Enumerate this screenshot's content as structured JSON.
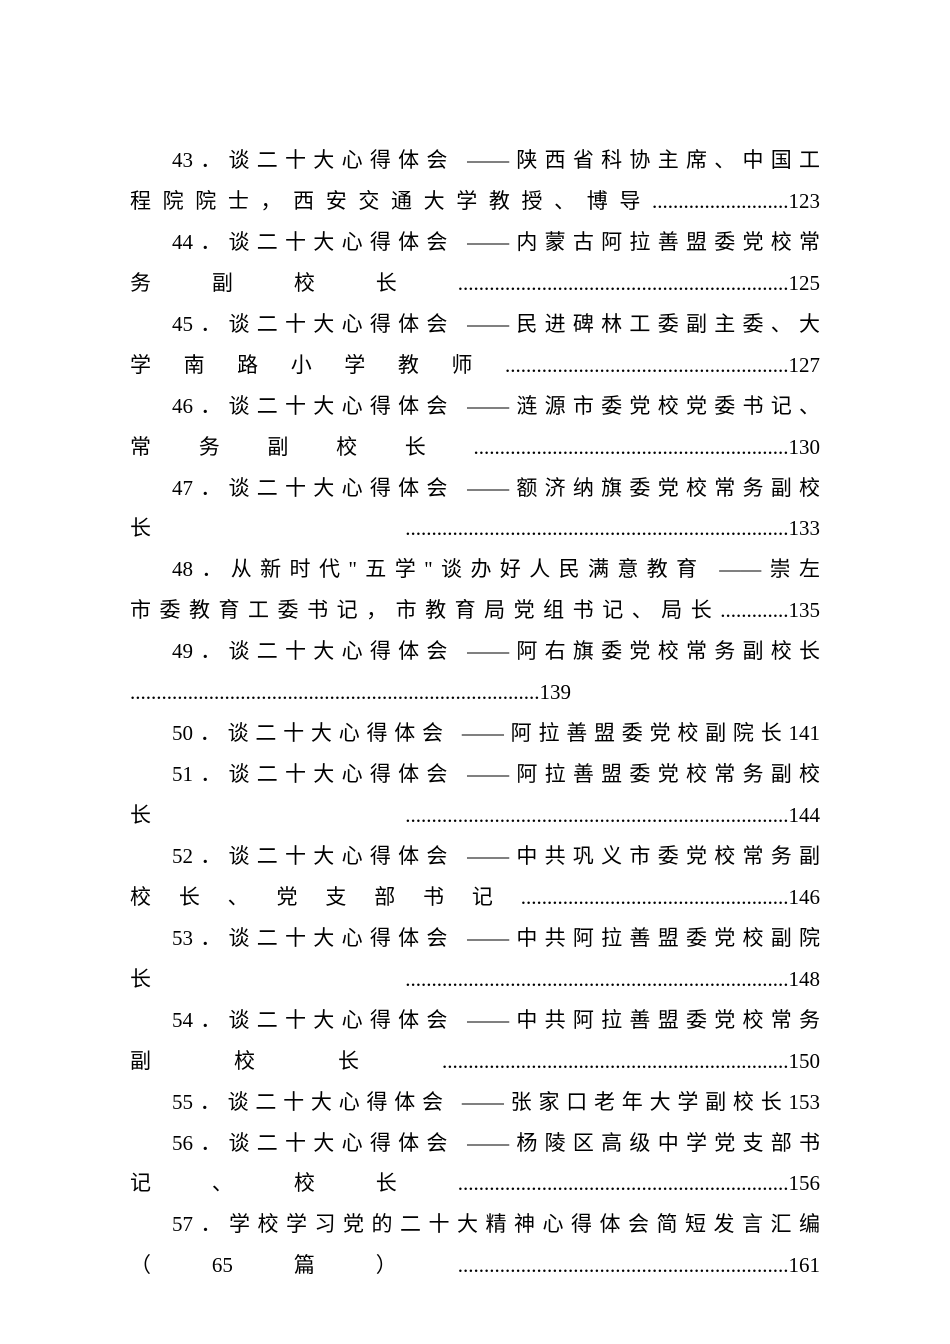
{
  "document": {
    "font_family": "SimSun",
    "font_size_pt": 16,
    "text_color": "#000000",
    "background_color": "#ffffff",
    "line_height": 1.95
  },
  "toc_entries": [
    {
      "number": "43",
      "title": "谈二十大心得体会 ——陕西省科协主席、中国工程院院士，西安交通大学教授、博导",
      "page": "123",
      "lines": [
        {
          "text": "43．谈二十大心得体会 ——陕西省科协主席、中国工",
          "indent": true
        },
        {
          "text": "程院院士，西安交通大学教授、博导..........................123",
          "indent": false
        }
      ]
    },
    {
      "number": "44",
      "title": "谈二十大心得体会 ——内蒙古阿拉善盟委党校常务副校长",
      "page": "125",
      "lines": [
        {
          "text": "44．谈二十大心得体会 ——内蒙古阿拉善盟委党校常",
          "indent": true
        },
        {
          "text": "务副校长...............................................................125",
          "indent": false
        }
      ]
    },
    {
      "number": "45",
      "title": "谈二十大心得体会 ——民进碑林工委副主委、大学南路小学教师",
      "page": "127",
      "lines": [
        {
          "text": "45．谈二十大心得体会 ——民进碑林工委副主委、大",
          "indent": true
        },
        {
          "text": "学南路小学教师......................................................127",
          "indent": false
        }
      ]
    },
    {
      "number": "46",
      "title": "谈二十大心得体会 ——涟源市委党校党委书记、常务副校长",
      "page": "130",
      "lines": [
        {
          "text": "46．谈二十大心得体会 ——涟源市委党校党委书记、",
          "indent": true
        },
        {
          "text": "常务副校长............................................................130",
          "indent": false
        }
      ]
    },
    {
      "number": "47",
      "title": "谈二十大心得体会 ——额济纳旗委党校常务副校长",
      "page": "133",
      "lines": [
        {
          "text": "47．谈二十大心得体会 ——额济纳旗委党校常务副校",
          "indent": true
        },
        {
          "text": "长.........................................................................133",
          "indent": false
        }
      ]
    },
    {
      "number": "48",
      "title": "从新时代\"五学\"谈办好人民满意教育 ——崇左市委教育工委书记，市教育局党组书记、局长",
      "page": "135",
      "lines": [
        {
          "text": "48．从新时代\"五学\"谈办好人民满意教育 ——崇左",
          "indent": true
        },
        {
          "text": "市委教育工委书记，市教育局党组书记、局长.............135",
          "indent": false
        }
      ]
    },
    {
      "number": "49",
      "title": "谈二十大心得体会 ——阿右旗委党校常务副校长",
      "page": "139",
      "lines": [
        {
          "text": "49．谈二十大心得体会 ——阿右旗委党校常务副校长",
          "indent": true
        },
        {
          "text": "..............................................................................139",
          "indent": false
        }
      ]
    },
    {
      "number": "50",
      "title": "谈二十大心得体会 ——阿拉善盟委党校副院长",
      "page": "141",
      "lines": [
        {
          "text": "50．谈二十大心得体会 ——阿拉善盟委党校副院长141",
          "indent": true
        }
      ]
    },
    {
      "number": "51",
      "title": "谈二十大心得体会 ——阿拉善盟委党校常务副校长",
      "page": "144",
      "lines": [
        {
          "text": "51．谈二十大心得体会 ——阿拉善盟委党校常务副校",
          "indent": true
        },
        {
          "text": "长.........................................................................144",
          "indent": false
        }
      ]
    },
    {
      "number": "52",
      "title": "谈二十大心得体会 ——中共巩义市委党校常务副校长、党支部书记",
      "page": "146",
      "lines": [
        {
          "text": "52．谈二十大心得体会 ——中共巩义市委党校常务副",
          "indent": true
        },
        {
          "text": "校长、党支部书记...................................................146",
          "indent": false
        }
      ]
    },
    {
      "number": "53",
      "title": "谈二十大心得体会 ——中共阿拉善盟委党校副院长",
      "page": "148",
      "lines": [
        {
          "text": "53．谈二十大心得体会 ——中共阿拉善盟委党校副院",
          "indent": true
        },
        {
          "text": "长.........................................................................148",
          "indent": false
        }
      ]
    },
    {
      "number": "54",
      "title": "谈二十大心得体会 ——中共阿拉善盟委党校常务副校长",
      "page": "150",
      "lines": [
        {
          "text": "54．谈二十大心得体会 ——中共阿拉善盟委党校常务",
          "indent": true
        },
        {
          "text": "副校长..................................................................150",
          "indent": false
        }
      ]
    },
    {
      "number": "55",
      "title": "谈二十大心得体会 ——张家口老年大学副校长",
      "page": "153",
      "lines": [
        {
          "text": "55．谈二十大心得体会 ——张家口老年大学副校长153",
          "indent": true
        }
      ]
    },
    {
      "number": "56",
      "title": "谈二十大心得体会 ——杨陵区高级中学党支部书记、校长",
      "page": "156",
      "lines": [
        {
          "text": "56．谈二十大心得体会 ——杨陵区高级中学党支部书",
          "indent": true
        },
        {
          "text": "记、校长...............................................................156",
          "indent": false
        }
      ]
    },
    {
      "number": "57",
      "title": "学校学习党的二十大精神心得体会简短发言汇编（65篇）",
      "page": "161",
      "lines": [
        {
          "text": "57．学校学习党的二十大精神心得体会简短发言汇编",
          "indent": true
        },
        {
          "text": "（65篇）...............................................................161",
          "indent": false
        }
      ]
    }
  ]
}
